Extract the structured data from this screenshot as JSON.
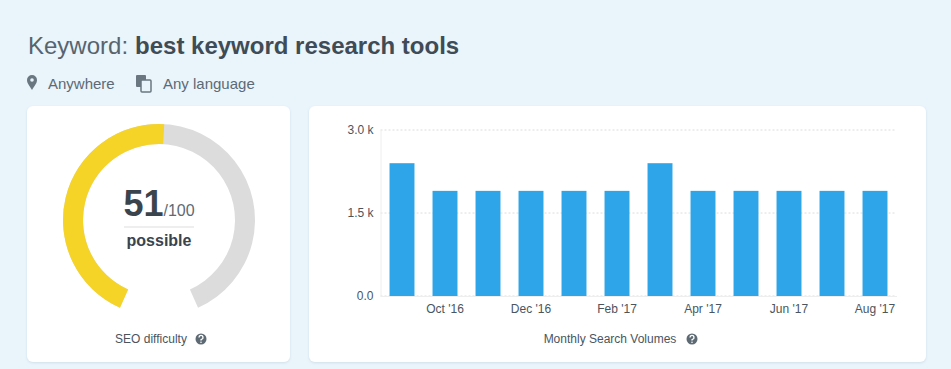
{
  "header": {
    "prefix": "Keyword:",
    "keyword": "best keyword research tools",
    "location": "Anywhere",
    "language": "Any language"
  },
  "chart_data": [
    {
      "type": "gauge",
      "title": "SEO difficulty",
      "values": [
        51
      ],
      "ylim": [
        0,
        100
      ],
      "max_label": "/100",
      "rating": "possible",
      "color": "#f5d327"
    },
    {
      "type": "bar",
      "title": "Monthly Search Volumes",
      "categories": [
        null,
        "Oct '16",
        null,
        "Dec '16",
        null,
        "Feb '17",
        null,
        "Apr '17",
        null,
        "Jun '17",
        null,
        "Aug '17"
      ],
      "values": [
        2400,
        1900,
        1900,
        1900,
        1900,
        1900,
        2400,
        1900,
        1900,
        1900,
        1900,
        1900
      ],
      "color": "#2ea5e8",
      "ylim": [
        0,
        3000
      ],
      "yticks": [
        {
          "value": 0,
          "label": "0.0"
        },
        {
          "value": 1500,
          "label": "1.5 k"
        },
        {
          "value": 3000,
          "label": "3.0 k"
        }
      ],
      "grid": true
    }
  ]
}
